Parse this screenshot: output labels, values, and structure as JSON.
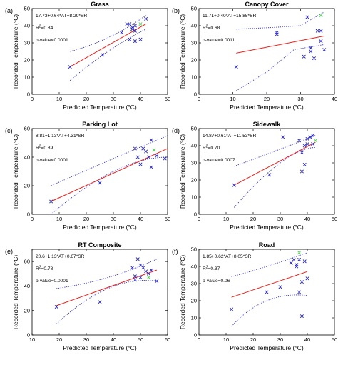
{
  "colors": {
    "fit": "#e8211b",
    "ci": "#2b2bd6",
    "point": "#2424c8",
    "highlight": "#4ed04e",
    "frame": "#000000"
  },
  "chart_data": [
    {
      "type": "scatter",
      "panel_label": "(a)",
      "title": "Grass",
      "xlabel": "Predicted Temperature (°C)",
      "ylabel": "Recorded Temperature (°C)",
      "xlim": [
        0,
        50
      ],
      "ylim": [
        0,
        50
      ],
      "xticks": [
        0,
        10,
        20,
        30,
        40,
        50
      ],
      "yticks": [
        0,
        10,
        20,
        30,
        40,
        50
      ],
      "grid": false,
      "equation": "17.73+0.64*AT+8.29*SR",
      "r2_prefix": "R",
      "r2_value": "=0.84",
      "pvalue": "p-value<0.0001",
      "points": [
        [
          14,
          16
        ],
        [
          26,
          23
        ],
        [
          33,
          36
        ],
        [
          35,
          41
        ],
        [
          36,
          41
        ],
        [
          37,
          39
        ],
        [
          38,
          40
        ],
        [
          37,
          38
        ],
        [
          38,
          37
        ],
        [
          36,
          32
        ],
        [
          38,
          31
        ],
        [
          40,
          32
        ],
        [
          42,
          44
        ]
      ],
      "highlight_points": [
        [
          40,
          41
        ]
      ],
      "fit_line": {
        "x": [
          14,
          42
        ],
        "y": [
          16,
          41
        ]
      },
      "ci_upper": [
        [
          14,
          25
        ],
        [
          28,
          33
        ],
        [
          42,
          46
        ]
      ],
      "ci_lower": [
        [
          14,
          8
        ],
        [
          28,
          25
        ],
        [
          42,
          38
        ]
      ]
    },
    {
      "type": "scatter",
      "panel_label": "(b)",
      "title": "Canopy Cover",
      "xlabel": "Predicted Temperature (°C)",
      "ylabel": "Recorded Temperature (°C)",
      "xlim": [
        0,
        40
      ],
      "ylim": [
        0,
        50
      ],
      "xticks": [
        0,
        10,
        20,
        30,
        40
      ],
      "yticks": [
        0,
        10,
        20,
        30,
        40,
        50
      ],
      "grid": false,
      "equation": "11.71+0.40*AT+15.85*SR",
      "r2_prefix": "R",
      "r2_value": "=0.68",
      "pvalue": "p-value=0.0011",
      "points": [
        [
          11,
          16
        ],
        [
          23,
          36
        ],
        [
          23,
          35
        ],
        [
          31,
          22
        ],
        [
          33,
          27
        ],
        [
          33,
          25
        ],
        [
          34,
          21
        ],
        [
          35,
          37
        ],
        [
          36,
          31
        ],
        [
          37,
          26
        ],
        [
          32,
          45
        ],
        [
          36,
          37
        ]
      ],
      "highlight_points": [
        [
          36,
          46
        ]
      ],
      "fit_line": {
        "x": [
          11,
          37
        ],
        "y": [
          24,
          34
        ]
      },
      "ci_upper": [
        [
          11,
          38
        ],
        [
          22,
          39
        ],
        [
          30,
          40
        ],
        [
          37,
          48
        ]
      ],
      "ci_lower": [
        [
          11,
          2
        ],
        [
          20,
          13
        ],
        [
          28,
          26
        ],
        [
          37,
          29
        ]
      ]
    },
    {
      "type": "scatter",
      "panel_label": "(c)",
      "title": "Parking Lot",
      "xlabel": "Predicted Temperature (°C)",
      "ylabel": "Recorded Temperature (°C)",
      "xlim": [
        0,
        50
      ],
      "ylim": [
        0,
        60
      ],
      "xticks": [
        0,
        10,
        20,
        30,
        40,
        50
      ],
      "yticks": [
        0,
        20,
        40,
        60
      ],
      "grid": false,
      "equation": "8.81+1.13*AT+4.31*SR",
      "r2_prefix": "R",
      "r2_value": "=0.89",
      "pvalue": "p-value<0.0001",
      "points": [
        [
          7,
          9
        ],
        [
          25,
          22
        ],
        [
          38,
          46
        ],
        [
          39,
          40
        ],
        [
          40,
          35
        ],
        [
          41,
          46
        ],
        [
          42,
          44
        ],
        [
          43,
          40
        ],
        [
          44,
          52
        ],
        [
          44,
          33
        ],
        [
          46,
          41
        ],
        [
          49,
          39
        ]
      ],
      "highlight_points": [
        [
          45,
          45
        ]
      ],
      "fit_line": {
        "x": [
          7,
          50
        ],
        "y": [
          9,
          46
        ]
      },
      "ci_upper": [
        [
          7,
          20
        ],
        [
          30,
          39
        ],
        [
          50,
          55
        ]
      ],
      "ci_lower": [
        [
          7,
          0
        ],
        [
          30,
          30
        ],
        [
          50,
          40
        ]
      ]
    },
    {
      "type": "scatter",
      "panel_label": "(d)",
      "title": "Sidewalk",
      "xlabel": "Predicted Temperature (°C)",
      "ylabel": "Recorded Temperature (°C)",
      "xlim": [
        0,
        50
      ],
      "ylim": [
        0,
        50
      ],
      "xticks": [
        0,
        10,
        20,
        30,
        40,
        50
      ],
      "yticks": [
        0,
        10,
        20,
        30,
        40,
        50
      ],
      "grid": false,
      "equation": "14.87+0.61*AT+11.53*SR",
      "r2_prefix": "R",
      "r2_value": "=0.70",
      "pvalue": "p-value=0.0007",
      "points": [
        [
          13,
          17
        ],
        [
          26,
          23
        ],
        [
          31,
          45
        ],
        [
          37,
          43
        ],
        [
          38,
          36
        ],
        [
          39,
          40
        ],
        [
          40,
          44
        ],
        [
          40,
          41
        ],
        [
          41,
          45
        ],
        [
          39,
          29
        ],
        [
          38,
          25
        ],
        [
          42,
          41
        ],
        [
          42,
          46
        ]
      ],
      "highlight_points": [
        [
          43,
          43
        ]
      ],
      "fit_line": {
        "x": [
          13,
          43
        ],
        "y": [
          17,
          42
        ]
      },
      "ci_upper": [
        [
          13,
          28
        ],
        [
          30,
          38
        ],
        [
          43,
          46
        ]
      ],
      "ci_lower": [
        [
          13,
          4
        ],
        [
          30,
          30
        ],
        [
          43,
          39
        ]
      ]
    },
    {
      "type": "scatter",
      "panel_label": "(e)",
      "title": "RT Composite",
      "xlabel": "Predicted Temperature (°C)",
      "ylabel": "Recorded Temperature (°C)",
      "xlim": [
        10,
        60
      ],
      "ylim": [
        0,
        70
      ],
      "xticks": [
        10,
        20,
        30,
        40,
        50,
        60
      ],
      "yticks": [
        0,
        20,
        40,
        60
      ],
      "grid": false,
      "equation": "20.6+1.13*AT+0.67*SR",
      "r2_prefix": "R",
      "r2_value": "=0.78",
      "pvalue": "p-value=0.0001",
      "points": [
        [
          19,
          23
        ],
        [
          35,
          27
        ],
        [
          47,
          55
        ],
        [
          48,
          48
        ],
        [
          48,
          45
        ],
        [
          49,
          62
        ],
        [
          50,
          57
        ],
        [
          51,
          55
        ],
        [
          52,
          52
        ],
        [
          53,
          50
        ],
        [
          56,
          44
        ],
        [
          50,
          47
        ],
        [
          54,
          53
        ]
      ],
      "highlight_points": [
        [
          53,
          47
        ]
      ],
      "fit_line": {
        "x": [
          19,
          56
        ],
        "y": [
          24,
          53
        ]
      },
      "ci_upper": [
        [
          19,
          38
        ],
        [
          38,
          47
        ],
        [
          56,
          62
        ]
      ],
      "ci_lower": [
        [
          19,
          9
        ],
        [
          38,
          38
        ],
        [
          56,
          44
        ]
      ]
    },
    {
      "type": "scatter",
      "panel_label": "(f)",
      "title": "Road",
      "xlabel": "Predicted Temperature (°C)",
      "ylabel": "Recorded Temperature (°C)",
      "xlim": [
        0,
        50
      ],
      "ylim": [
        0,
        50
      ],
      "xticks": [
        0,
        10,
        20,
        30,
        40,
        50
      ],
      "yticks": [
        0,
        10,
        20,
        30,
        40,
        50
      ],
      "grid": false,
      "equation": "1.85+0.62*AT+8.05*SR",
      "r2_prefix": "R",
      "r2_value": "=0.37",
      "pvalue": "p-value=0.06",
      "points": [
        [
          12,
          15
        ],
        [
          25,
          25
        ],
        [
          30,
          28
        ],
        [
          34,
          42
        ],
        [
          35,
          44
        ],
        [
          36,
          41
        ],
        [
          36,
          40
        ],
        [
          37,
          25
        ],
        [
          37,
          44
        ],
        [
          38,
          31
        ],
        [
          38,
          11
        ],
        [
          39,
          43
        ],
        [
          40,
          33
        ]
      ],
      "highlight_points": [
        [
          37,
          48
        ]
      ],
      "fit_line": {
        "x": [
          12,
          40
        ],
        "y": [
          22,
          37
        ]
      },
      "ci_upper": [
        [
          12,
          34
        ],
        [
          25,
          40
        ],
        [
          40,
          48
        ]
      ],
      "ci_lower": [
        [
          12,
          5
        ],
        [
          25,
          20
        ],
        [
          40,
          23
        ]
      ]
    }
  ]
}
